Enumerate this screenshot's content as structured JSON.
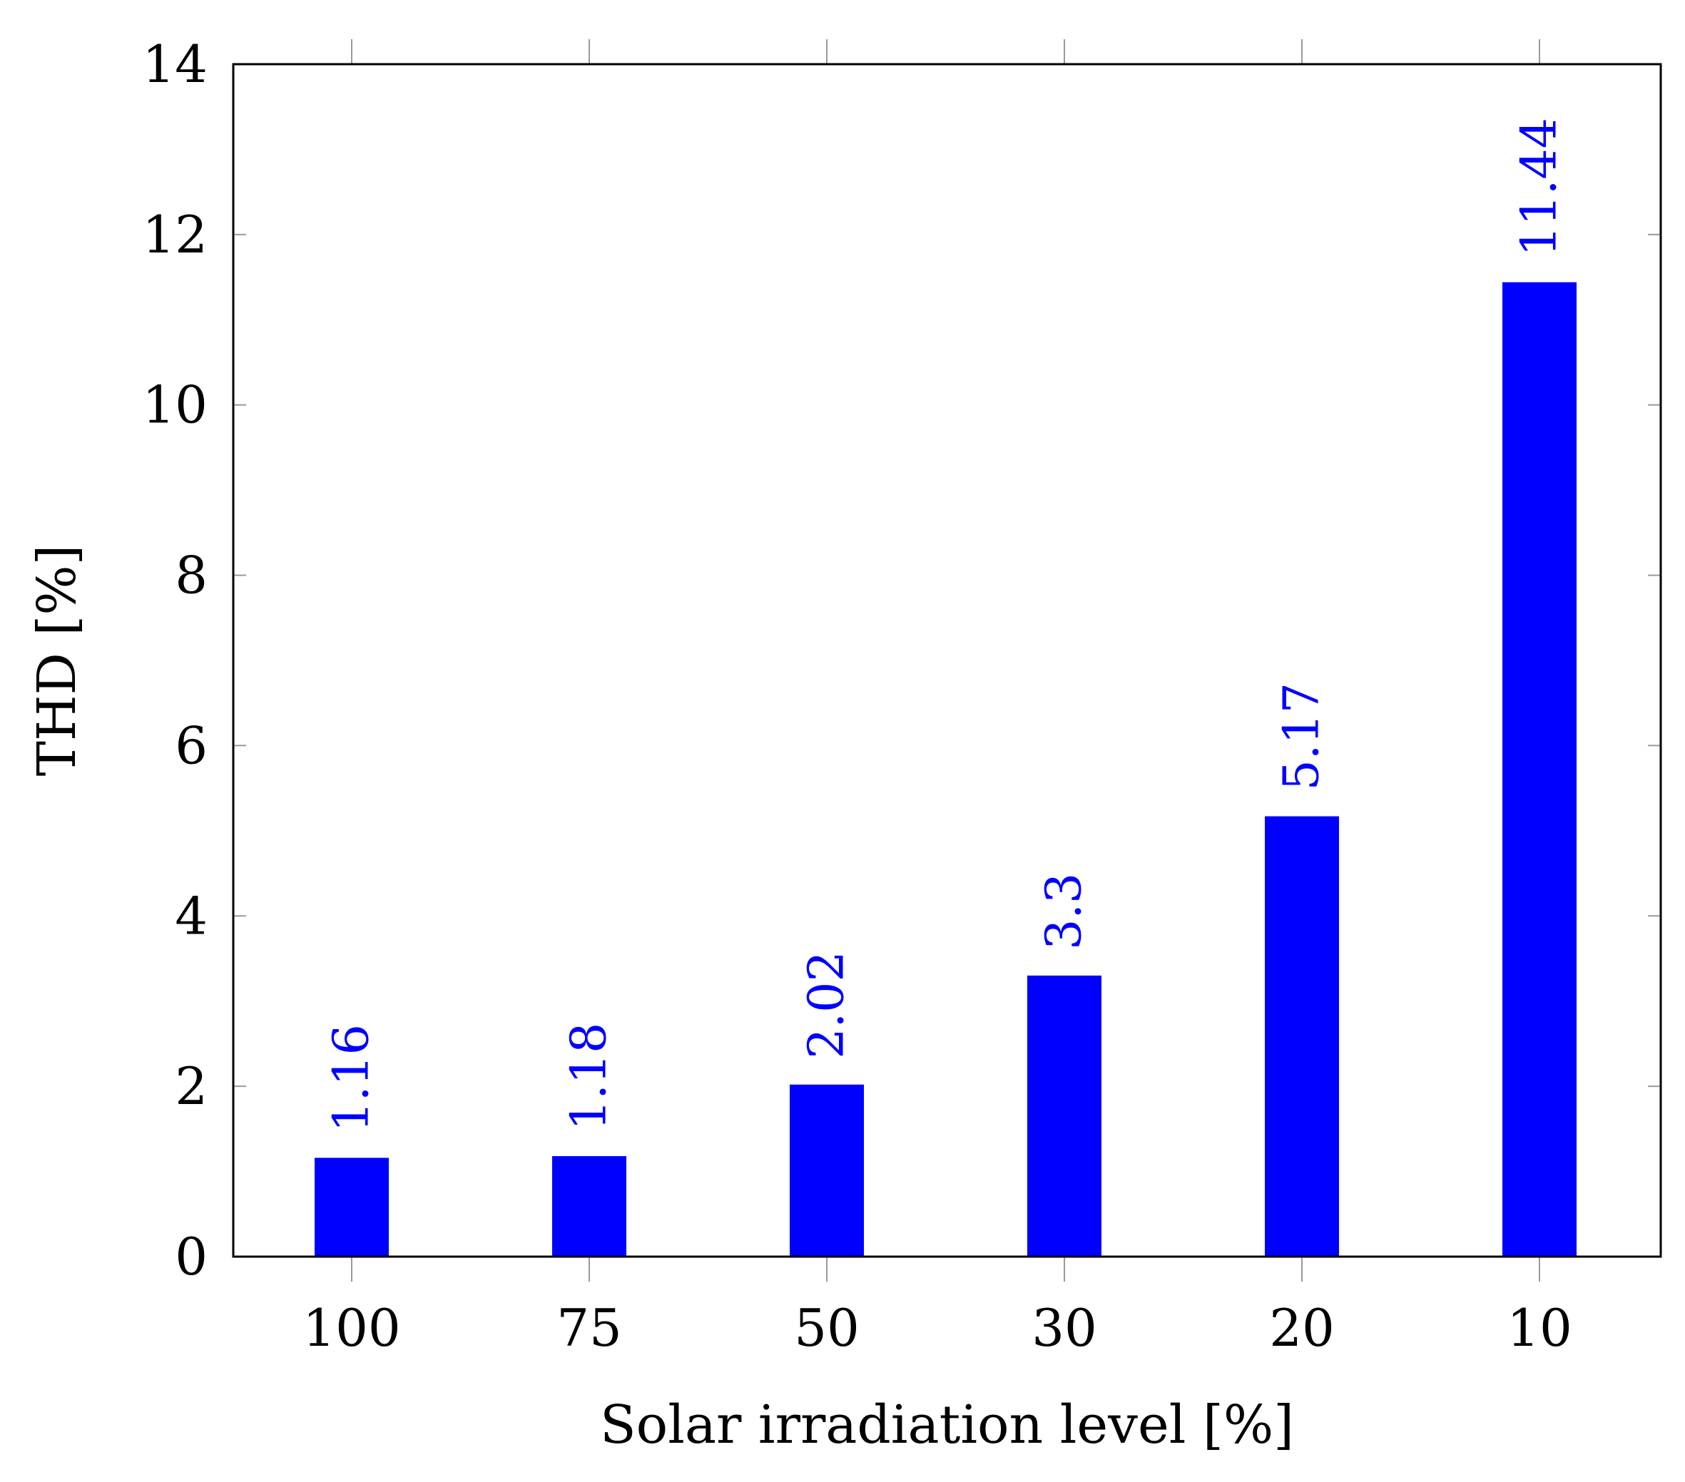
{
  "chart_data": {
    "type": "bar",
    "categories": [
      "100",
      "75",
      "50",
      "30",
      "20",
      "10"
    ],
    "values": [
      1.16,
      1.18,
      2.02,
      3.3,
      5.17,
      11.44
    ],
    "value_labels": [
      "1.16",
      "1.18",
      "2.02",
      "3.3",
      "5.17",
      "11.44"
    ],
    "title": "",
    "xlabel": "Solar irradiation level [%]",
    "ylabel": "THD [%]",
    "ylim": [
      0,
      14
    ],
    "yticks": [
      0,
      2,
      4,
      6,
      8,
      10,
      12,
      14
    ],
    "ytick_labels": [
      "0",
      "2",
      "4",
      "6",
      "8",
      "10",
      "12",
      "14"
    ],
    "grid": false,
    "legend": "none",
    "bar_color": "#0000ff",
    "label_color": "#0000ff",
    "axis_color": "#000000",
    "tick_color": "#9a9a9a"
  }
}
